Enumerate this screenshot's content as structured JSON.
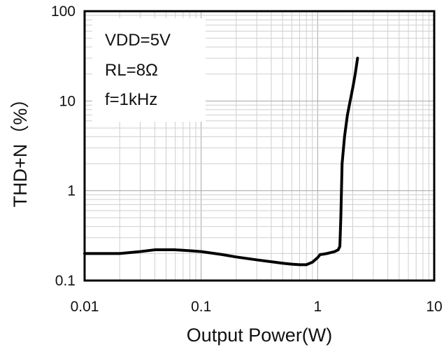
{
  "chart_data": {
    "type": "line",
    "x_scale": "log",
    "y_scale": "log",
    "xlabel": "Output Power(W)",
    "ylabel": "THD+N（%）",
    "xlim": [
      0.01,
      10
    ],
    "ylim": [
      0.1,
      100
    ],
    "x_ticks": [
      {
        "value": 0.01,
        "label": "0.01"
      },
      {
        "value": 0.1,
        "label": "0.1"
      },
      {
        "value": 1,
        "label": "1"
      },
      {
        "value": 10,
        "label": "10"
      }
    ],
    "y_ticks": [
      {
        "value": 0.1,
        "label": "0.1"
      },
      {
        "value": 1,
        "label": "1"
      },
      {
        "value": 10,
        "label": "10"
      },
      {
        "value": 100,
        "label": "100"
      }
    ],
    "grid": true,
    "annotations": [
      "VDD=5V",
      "RL=8Ω",
      "f=1kHz"
    ],
    "series": [
      {
        "color": "#000000",
        "x": [
          0.01,
          0.015,
          0.02,
          0.03,
          0.04,
          0.05,
          0.06,
          0.08,
          0.1,
          0.15,
          0.2,
          0.3,
          0.4,
          0.5,
          0.6,
          0.7,
          0.8,
          0.9,
          1.0,
          1.05,
          1.1,
          1.2,
          1.3,
          1.4,
          1.5,
          1.55,
          1.58,
          1.62,
          1.7,
          1.8,
          1.9,
          2.0,
          2.1,
          2.2
        ],
        "y": [
          0.2,
          0.2,
          0.2,
          0.21,
          0.22,
          0.22,
          0.22,
          0.215,
          0.21,
          0.195,
          0.183,
          0.17,
          0.162,
          0.156,
          0.152,
          0.15,
          0.15,
          0.16,
          0.18,
          0.195,
          0.196,
          0.2,
          0.205,
          0.21,
          0.22,
          0.24,
          0.5,
          2.0,
          4.0,
          7.0,
          10.0,
          14.0,
          20.0,
          30.0
        ]
      }
    ]
  }
}
